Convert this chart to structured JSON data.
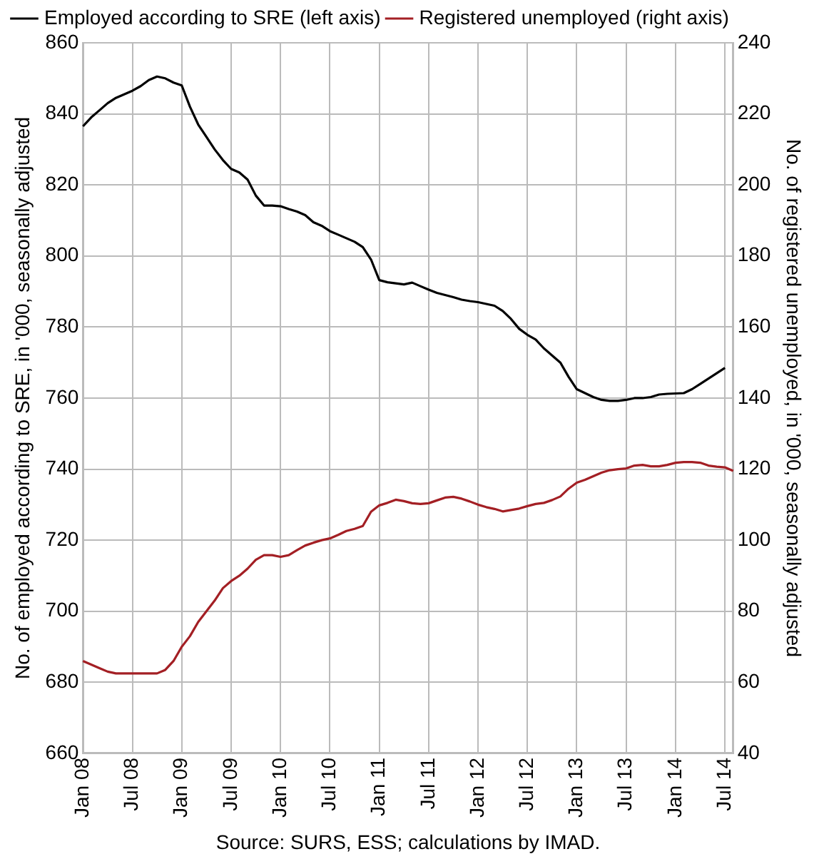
{
  "chart_data": {
    "type": "line",
    "ylabel": "No. of employed according to SRE, in '000, seasonally adjusted",
    "y2label": "No. of registered unemployed, in '000, seasonally adjusted",
    "annotations": [
      "Source: SURS, ESS; calculations by IMAD."
    ],
    "categories": [
      "Jan 08",
      null,
      null,
      null,
      null,
      null,
      "Jul 08",
      null,
      null,
      null,
      null,
      null,
      "Jan 09",
      null,
      null,
      null,
      null,
      null,
      "Jul 09",
      null,
      null,
      null,
      null,
      null,
      "Jan 10",
      null,
      null,
      null,
      null,
      null,
      "Jul 10",
      null,
      null,
      null,
      null,
      null,
      "Jan 11",
      null,
      null,
      null,
      null,
      null,
      "Jul 11",
      null,
      null,
      null,
      null,
      null,
      "Jan 12",
      null,
      null,
      null,
      null,
      null,
      "Jul 12",
      null,
      null,
      null,
      null,
      null,
      "Jan 13",
      null,
      null,
      null,
      null,
      null,
      "Jul 13",
      null,
      null,
      null,
      null,
      null,
      "Jan 14",
      null,
      null,
      null,
      null,
      null,
      "Jul 14",
      null
    ],
    "series": [
      {
        "name": "Employed according to SRE (left axis)",
        "color": "#000000",
        "values": [
          836.5,
          839,
          841,
          843,
          844.5,
          845.5,
          846.5,
          847.8,
          849.5,
          850.5,
          850,
          848.8,
          848,
          842,
          837,
          833.5,
          830,
          827,
          824.5,
          823.5,
          821.5,
          817,
          814.2,
          814.2,
          814,
          813.2,
          812.5,
          811.5,
          809.5,
          808.5,
          807,
          806,
          805,
          804,
          802.5,
          799,
          793.2,
          792.6,
          792.3,
          792,
          792.5,
          791.5,
          790.5,
          789.6,
          789,
          788.4,
          787.7,
          787.3,
          787,
          786.5,
          786,
          784.5,
          782.3,
          779.5,
          777.8,
          776.5,
          774,
          772,
          770,
          766,
          762.5,
          761.4,
          760.3,
          759.5,
          759.2,
          759.2,
          759.5,
          760,
          760,
          760.3,
          761,
          761.2,
          761.3,
          761.4,
          762.5,
          764,
          765.5,
          767,
          768.5,
          null
        ]
      },
      {
        "name": "Registered unemployed (right axis)",
        "color": "#a31f24",
        "axis": "y2",
        "values": [
          66,
          65,
          64,
          63,
          62.5,
          62.5,
          62.5,
          62.5,
          62.5,
          62.5,
          63.5,
          66,
          70,
          73,
          77,
          80,
          83,
          86.5,
          88.5,
          90,
          92,
          94.5,
          95.8,
          95.8,
          95.3,
          95.8,
          97.2,
          98.5,
          99.3,
          100,
          100.5,
          101.5,
          102.6,
          103.2,
          104,
          108,
          109.8,
          110.5,
          111.4,
          111,
          110.4,
          110.2,
          110.4,
          111.2,
          112,
          112.2,
          111.7,
          110.9,
          110,
          109.3,
          108.8,
          108.1,
          108.5,
          108.9,
          109.6,
          110.2,
          110.5,
          111.3,
          112.3,
          114.5,
          116.2,
          117,
          118,
          119,
          119.7,
          120,
          120.2,
          121,
          121.2,
          120.8,
          120.8,
          121.2,
          121.8,
          122,
          122,
          121.8,
          121,
          120.7,
          120.5,
          119.5
        ]
      }
    ],
    "ylim": [
      660,
      860
    ],
    "yticks": [
      660,
      680,
      700,
      720,
      740,
      760,
      780,
      800,
      820,
      840,
      860
    ],
    "y2lim": [
      40,
      240
    ],
    "y2ticks": [
      40,
      60,
      80,
      100,
      120,
      140,
      160,
      180,
      200,
      220,
      240
    ],
    "grid": true,
    "legend": "top left",
    "marker": "none",
    "line_style": "solid"
  }
}
